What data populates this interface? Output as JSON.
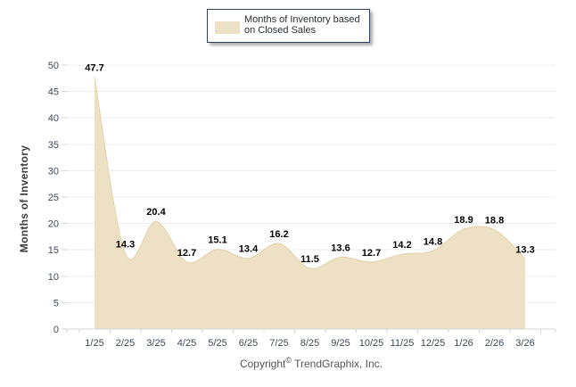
{
  "chart_data": {
    "type": "area",
    "smooth": true,
    "categories": [
      "1/25",
      "2/25",
      "3/25",
      "4/25",
      "5/25",
      "6/25",
      "7/25",
      "8/25",
      "9/25",
      "10/25",
      "11/25",
      "12/25",
      "1/26",
      "2/26",
      "3/26"
    ],
    "values": [
      47.7,
      14.3,
      20.4,
      12.7,
      15.1,
      13.4,
      16.2,
      11.5,
      13.6,
      12.7,
      14.2,
      14.8,
      18.9,
      18.8,
      13.3
    ],
    "series_name": "Months of Inventory based on Closed Sales",
    "title": "",
    "xlabel": "",
    "ylabel": "Months of Inventory",
    "ylim": [
      0,
      50
    ],
    "ytick_step": 5,
    "grid": true,
    "legend_position": "top-center",
    "data_labels": true,
    "colors": {
      "fill": "#EDE0C4",
      "edge": "#E3D1A9",
      "grid": "#EDEDED",
      "axis": "#D4D4D4",
      "tick_label": "#3E4A57",
      "data_label": "#000000"
    }
  },
  "legend": {
    "line1": "Months of Inventory based",
    "line2": "on Closed Sales"
  },
  "footer": {
    "prefix": "Copyright",
    "symbol": "©",
    "suffix": " TrendGraphix, Inc."
  }
}
